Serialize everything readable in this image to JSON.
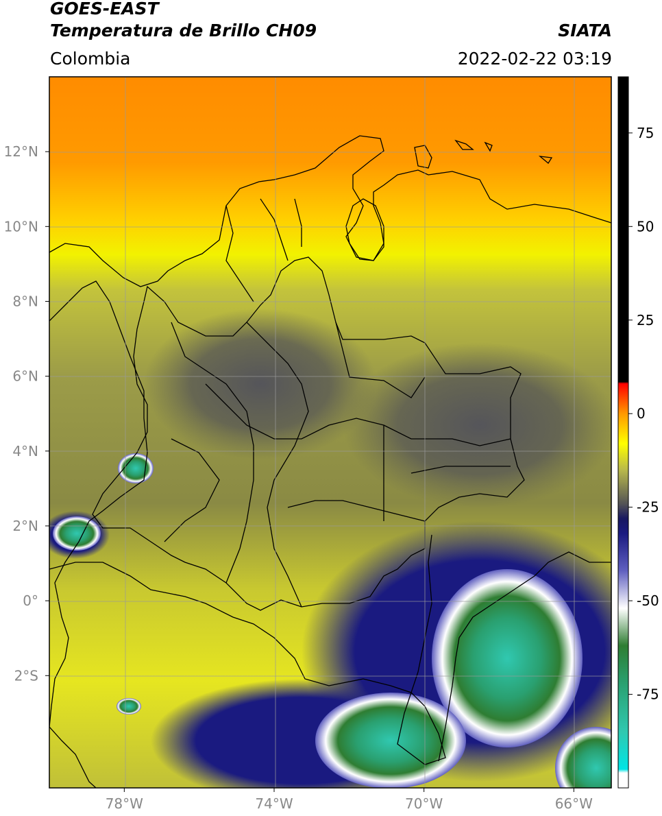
{
  "header": {
    "satellite": "GOES-EAST",
    "product": "Temperatura de Brillo CH09",
    "region": "Colombia",
    "source": "SIATA",
    "datetime": "2022-02-22 03:19"
  },
  "map": {
    "lon_range": [
      -80,
      -65
    ],
    "lat_range": [
      -5,
      14
    ],
    "lon_ticks": [
      {
        "value": -78,
        "label": "78°W"
      },
      {
        "value": -74,
        "label": "74°W"
      },
      {
        "value": -70,
        "label": "70°W"
      },
      {
        "value": -66,
        "label": "66°W"
      }
    ],
    "lat_ticks": [
      {
        "value": 12,
        "label": "12°N"
      },
      {
        "value": 10,
        "label": "10°N"
      },
      {
        "value": 8,
        "label": "8°N"
      },
      {
        "value": 6,
        "label": "6°N"
      },
      {
        "value": 4,
        "label": "4°N"
      },
      {
        "value": 2,
        "label": "2°N"
      },
      {
        "value": 0,
        "label": "0°"
      },
      {
        "value": -2,
        "label": "2°S"
      }
    ],
    "grid": true
  },
  "colorbar": {
    "range": [
      -100,
      90
    ],
    "ticks": [
      {
        "value": 75,
        "label": "75"
      },
      {
        "value": 50,
        "label": "50"
      },
      {
        "value": 25,
        "label": "25"
      },
      {
        "value": 0,
        "label": "0"
      },
      {
        "value": -25,
        "label": "-25"
      },
      {
        "value": -50,
        "label": "-50"
      },
      {
        "value": -75,
        "label": "-75"
      }
    ],
    "stops": [
      {
        "value": -100,
        "color": "#ffffff"
      },
      {
        "value": -96,
        "color": "#ffffff"
      },
      {
        "value": -95,
        "color": "#00e5e5"
      },
      {
        "value": -85,
        "color": "#30c8b0"
      },
      {
        "value": -72,
        "color": "#2aa070"
      },
      {
        "value": -62,
        "color": "#2e7d32"
      },
      {
        "value": -52,
        "color": "#ffffff"
      },
      {
        "value": -42,
        "color": "#6060c0"
      },
      {
        "value": -32,
        "color": "#1a1a80"
      },
      {
        "value": -28,
        "color": "#181860"
      },
      {
        "value": -24,
        "color": "#555555"
      },
      {
        "value": -15,
        "color": "#b9b94a"
      },
      {
        "value": -8,
        "color": "#ffff00"
      },
      {
        "value": 0,
        "color": "#ff9900"
      },
      {
        "value": 8,
        "color": "#ff0000"
      },
      {
        "value": 8.5,
        "color": "#000000"
      },
      {
        "value": 90,
        "color": "#000000"
      }
    ]
  }
}
